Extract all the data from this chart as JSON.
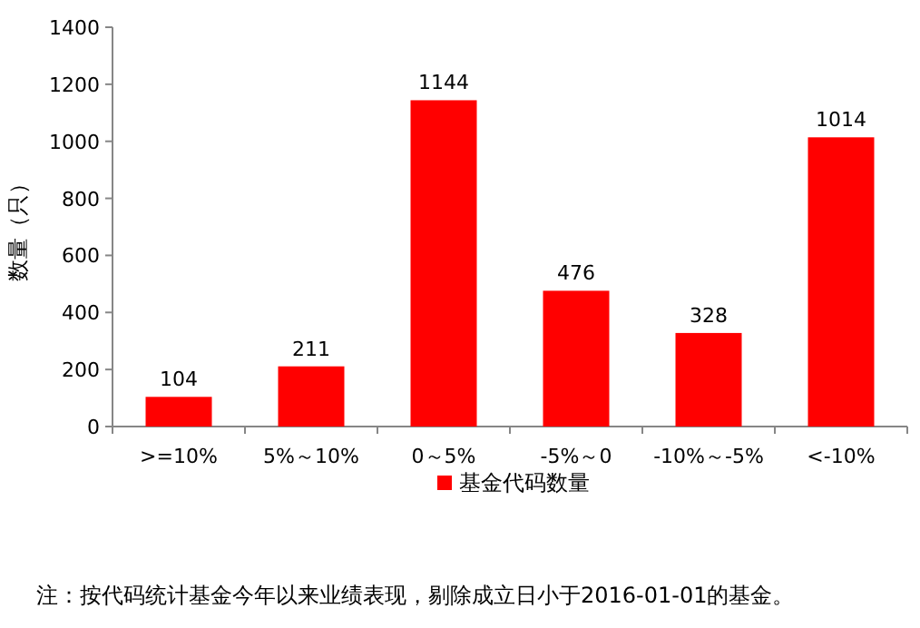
{
  "chart_data": {
    "type": "bar",
    "ylabel": "数量（只）",
    "categories": [
      ">=10%",
      "5%～10%",
      "0～5%",
      "-5%～0",
      "-10%～-5%",
      "<-10%"
    ],
    "series": [
      {
        "name": "基金代码数量",
        "color": "#ff0000",
        "values": [
          104,
          211,
          1144,
          476,
          328,
          1014
        ]
      }
    ],
    "ylim": [
      0,
      1400
    ],
    "yticks": [
      0,
      200,
      400,
      600,
      800,
      1000,
      1200,
      1400
    ],
    "data_labels": true,
    "legend": "bottom",
    "grid": false,
    "annotations": [
      "注：按代码统计基金今年以来业绩表现，剔除成立日小于2016-01-01的基金。"
    ]
  }
}
